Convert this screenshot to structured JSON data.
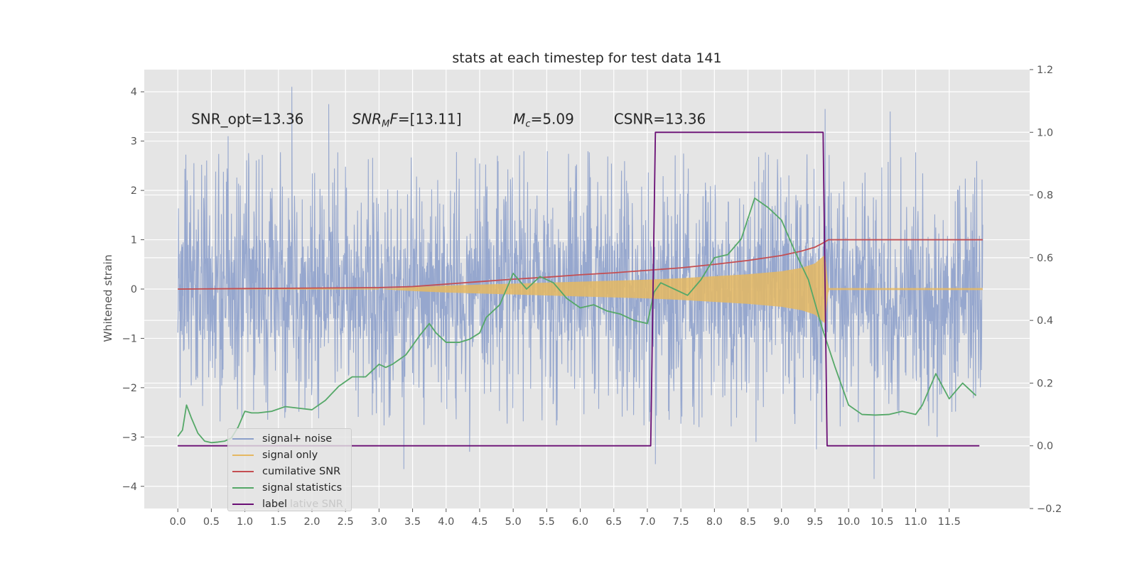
{
  "chart_data": {
    "type": "line",
    "title": "stats at each timestep for test data 141",
    "xlabel": "",
    "ylabel": "Whitened strain",
    "xlim": [
      -0.5,
      12.7
    ],
    "ylim": [
      -4.45,
      4.45
    ],
    "y2lim": [
      -0.2,
      1.2
    ],
    "xticks": [
      0.0,
      0.5,
      1.0,
      1.5,
      2.0,
      2.5,
      3.0,
      3.5,
      4.0,
      4.5,
      5.0,
      5.5,
      6.0,
      6.5,
      7.0,
      7.5,
      8.0,
      8.5,
      9.0,
      9.5,
      10.0,
      10.5,
      11.0,
      11.5
    ],
    "xtick_labels": [
      "0.0",
      "0.5",
      "1.0",
      "1.5",
      "2.0",
      "2.5",
      "3.0",
      "3.5",
      "4.0",
      "4.5",
      "5.0",
      "5.5",
      "6.0",
      "6.5",
      "7.0",
      "7.5",
      "8.0",
      "8.5",
      "9.0",
      "9.5",
      "10.0",
      "10.5",
      "11.0",
      "11.5"
    ],
    "yticks": [
      -4,
      -3,
      -2,
      -1,
      0,
      1,
      2,
      3,
      4
    ],
    "ytick_labels": [
      "−4",
      "−3",
      "−2",
      "−1",
      "0",
      "1",
      "2",
      "3",
      "4"
    ],
    "y2ticks": [
      -0.2,
      0.0,
      0.2,
      0.4,
      0.6,
      0.8,
      1.0,
      1.2
    ],
    "y2tick_labels": [
      "−0.2",
      "0.0",
      "0.2",
      "0.4",
      "0.6",
      "0.8",
      "1.0",
      "1.2"
    ],
    "grid": true,
    "legend_position": "lower-left",
    "annotations": [
      {
        "text": "SNR_opt=13.36",
        "x": 0.2,
        "y": 3.35
      },
      {
        "text": "SNR",
        "sub": "M",
        "suffix": "F=[13.11]",
        "x": 2.6,
        "y": 3.35
      },
      {
        "text": "M",
        "sub": "c",
        "suffix": "=5.09",
        "x": 5.0,
        "y": 3.35
      },
      {
        "text": "CSNR=13.36",
        "x": 6.5,
        "y": 3.35
      }
    ],
    "series": [
      {
        "name": "signal+ noise",
        "axis": "left",
        "color": "#8da0cb",
        "kind": "noise",
        "x_range": [
          0.0,
          12.0
        ],
        "band": [
          -1.9,
          1.9
        ],
        "spike_points": [
          [
            1.7,
            4.1
          ],
          [
            3.37,
            -3.65
          ],
          [
            7.12,
            -3.55
          ],
          [
            10.38,
            -3.85
          ],
          [
            9.65,
            3.65
          ],
          [
            10.62,
            3.6
          ],
          [
            2.25,
            3.75
          ],
          [
            8.62,
            -3.1
          ],
          [
            11.32,
            -3.0
          ],
          [
            9.52,
            -3.25
          ],
          [
            0.75,
            3.1
          ],
          [
            4.35,
            -3.3
          ]
        ]
      },
      {
        "name": "signal only",
        "axis": "left",
        "color": "#e5b862",
        "kind": "chirp_envelope",
        "x": [
          3.0,
          3.5,
          4.0,
          4.5,
          5.0,
          5.5,
          6.0,
          6.5,
          7.0,
          7.5,
          8.0,
          8.5,
          9.0,
          9.3,
          9.5,
          9.65,
          9.7,
          12.0
        ],
        "envelope": [
          0.0,
          0.04,
          0.07,
          0.09,
          0.11,
          0.13,
          0.15,
          0.17,
          0.19,
          0.22,
          0.26,
          0.3,
          0.36,
          0.43,
          0.52,
          0.7,
          0.02,
          0.02
        ]
      },
      {
        "name": "cumilative SNR",
        "axis": "left",
        "color": "#c44e52",
        "x": [
          0.0,
          1.0,
          2.0,
          3.0,
          3.5,
          4.0,
          4.5,
          5.0,
          5.5,
          6.0,
          6.5,
          7.0,
          7.5,
          8.0,
          8.5,
          9.0,
          9.3,
          9.5,
          9.6,
          9.7,
          12.0
        ],
        "values": [
          0.0,
          0.01,
          0.02,
          0.03,
          0.05,
          0.1,
          0.15,
          0.2,
          0.24,
          0.29,
          0.33,
          0.38,
          0.43,
          0.5,
          0.58,
          0.68,
          0.77,
          0.85,
          0.92,
          1.0,
          1.0
        ]
      },
      {
        "name": "signal statistics",
        "axis": "right",
        "color": "#55a868",
        "x": [
          0.0,
          0.07,
          0.13,
          0.2,
          0.3,
          0.4,
          0.5,
          0.6,
          0.7,
          0.8,
          0.9,
          1.0,
          1.1,
          1.2,
          1.4,
          1.6,
          1.8,
          2.0,
          2.2,
          2.4,
          2.6,
          2.8,
          3.0,
          3.1,
          3.2,
          3.4,
          3.6,
          3.75,
          3.85,
          4.0,
          4.2,
          4.35,
          4.5,
          4.6,
          4.8,
          5.0,
          5.2,
          5.4,
          5.6,
          5.8,
          6.0,
          6.2,
          6.4,
          6.6,
          6.8,
          7.0,
          7.1,
          7.2,
          7.4,
          7.6,
          7.8,
          8.0,
          8.2,
          8.4,
          8.6,
          8.8,
          9.0,
          9.2,
          9.4,
          9.6,
          9.8,
          10.0,
          10.2,
          10.4,
          10.6,
          10.8,
          11.0,
          11.1,
          11.3,
          11.5,
          11.7,
          11.9
        ],
        "values": [
          0.03,
          0.05,
          0.13,
          0.09,
          0.04,
          0.015,
          0.01,
          0.012,
          0.015,
          0.025,
          0.06,
          0.11,
          0.105,
          0.105,
          0.11,
          0.125,
          0.12,
          0.115,
          0.145,
          0.19,
          0.22,
          0.22,
          0.26,
          0.25,
          0.26,
          0.29,
          0.35,
          0.39,
          0.36,
          0.33,
          0.33,
          0.34,
          0.36,
          0.41,
          0.45,
          0.55,
          0.5,
          0.54,
          0.52,
          0.47,
          0.44,
          0.45,
          0.43,
          0.42,
          0.4,
          0.39,
          0.49,
          0.52,
          0.5,
          0.48,
          0.53,
          0.6,
          0.61,
          0.66,
          0.79,
          0.76,
          0.72,
          0.62,
          0.53,
          0.38,
          0.25,
          0.13,
          0.1,
          0.098,
          0.1,
          0.11,
          0.1,
          0.13,
          0.23,
          0.15,
          0.2,
          0.16
        ]
      },
      {
        "name": "label",
        "axis": "right",
        "color": "#6a0f75",
        "x": [
          0.0,
          7.05,
          7.12,
          9.62,
          9.68,
          11.95
        ],
        "values": [
          0.0,
          0.0,
          1.0,
          1.0,
          0.0,
          0.0
        ]
      }
    ]
  },
  "legend_ghost_text": "lative SNR"
}
